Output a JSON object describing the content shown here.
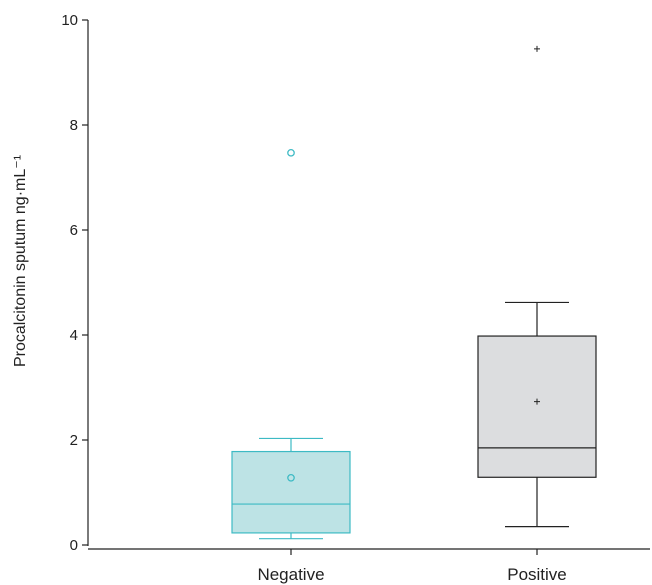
{
  "chart_data": {
    "type": "box",
    "ylabel": "Procalcitonin sputum ng·mL⁻¹",
    "xlabel": "",
    "ylim": [
      0,
      10
    ],
    "yticks": [
      0,
      2,
      4,
      6,
      8,
      10
    ],
    "categories": [
      "Negative",
      "Positive"
    ],
    "groups": [
      {
        "category": "Negative",
        "whisker_low": 0.12,
        "q1": 0.23,
        "median": 0.78,
        "q3": 1.78,
        "whisker_high": 2.03,
        "mean": 1.28,
        "mean_marker": "circle",
        "outliers": [
          7.47
        ],
        "outlier_marker": "circle",
        "fill_color": "#bde3e5",
        "stroke_color": "#3dbac4"
      },
      {
        "category": "Positive",
        "whisker_low": 0.35,
        "q1": 1.29,
        "median": 1.85,
        "q3": 3.98,
        "whisker_high": 4.62,
        "mean": 2.73,
        "mean_marker": "plus",
        "outliers": [
          9.45
        ],
        "outlier_marker": "plus",
        "fill_color": "#dcdddf",
        "stroke_color": "#222222"
      }
    ],
    "grid": false,
    "legend": "none"
  }
}
